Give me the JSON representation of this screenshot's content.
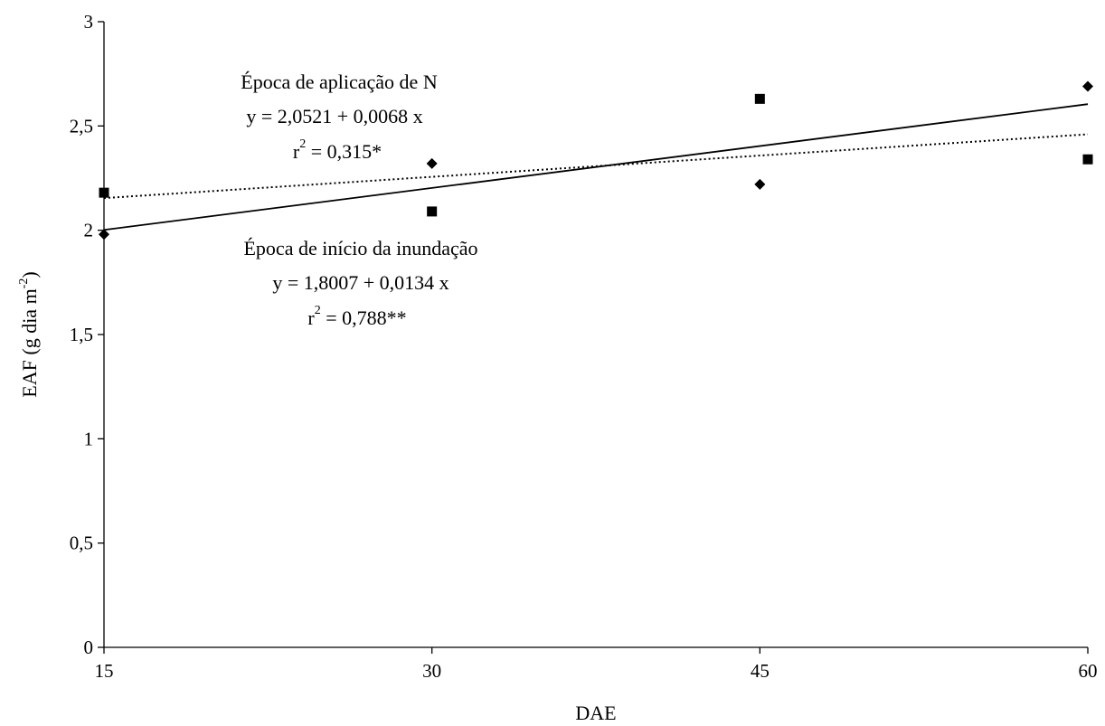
{
  "chart_data": {
    "type": "scatter",
    "xlabel": "DAE",
    "ylabel": {
      "prefix": "EAF (g dia m",
      "superscript": "-2",
      "suffix": ")"
    },
    "x_ticks": [
      15,
      30,
      45,
      60
    ],
    "y_ticks": [
      "0",
      "0,5",
      "1",
      "1,5",
      "2",
      "2,5",
      "3"
    ],
    "y_tick_values": [
      0,
      0.5,
      1,
      1.5,
      2,
      2.5,
      3
    ],
    "xlim": [
      15,
      60
    ],
    "ylim": [
      0,
      3
    ],
    "grid": false,
    "series": [
      {
        "marker": "diamond",
        "points": [
          {
            "x": 15,
            "y": 1.98
          },
          {
            "x": 30,
            "y": 2.32
          },
          {
            "x": 45,
            "y": 2.22
          },
          {
            "x": 60,
            "y": 2.69
          }
        ],
        "trendline": {
          "style": "solid",
          "intercept": 1.8007,
          "slope": 0.0134
        }
      },
      {
        "marker": "square",
        "points": [
          {
            "x": 15,
            "y": 2.18
          },
          {
            "x": 30,
            "y": 2.09
          },
          {
            "x": 45,
            "y": 2.63
          },
          {
            "x": 60,
            "y": 2.34
          }
        ],
        "trendline": {
          "style": "dotted",
          "intercept": 2.0521,
          "slope": 0.0068
        }
      }
    ],
    "annotations": {
      "aplicacao": {
        "title": "Época de aplicação de N",
        "equation": "y = 2,0521 + 0,0068 x",
        "r2_prefix": "r",
        "r2_sup": "2",
        "r2_value": " = 0,315*"
      },
      "inundacao": {
        "title": "Época de início da inundação",
        "equation": "y = 1,8007 + 0,0134 x",
        "r2_prefix": "r",
        "r2_sup": "2",
        "r2_value": " = 0,788**"
      }
    }
  }
}
